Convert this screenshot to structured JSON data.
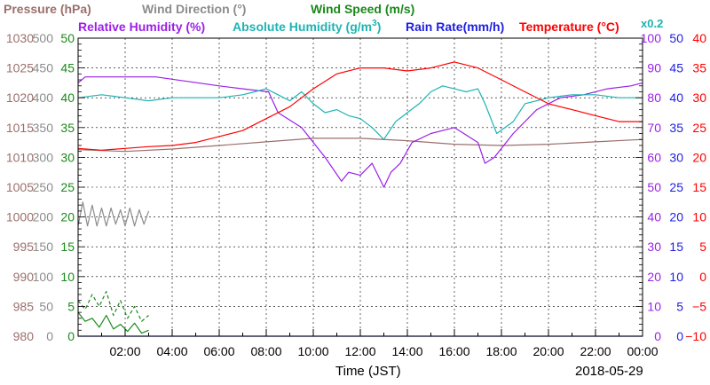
{
  "chart_data": {
    "type": "line",
    "date": "2018-05-29",
    "xlabel": "Time (JST)",
    "x_ticks": [
      "02:00",
      "04:00",
      "06:00",
      "08:00",
      "10:00",
      "12:00",
      "14:00",
      "16:00",
      "18:00",
      "20:00",
      "22:00",
      "00:00"
    ],
    "xlim_hours": [
      0,
      24
    ],
    "grid": true,
    "legend": {
      "row1": [
        {
          "name": "Pressure (hPa)",
          "color": "#9b6f6b"
        },
        {
          "name": "Wind Direction (°)",
          "color": "#8c8c8c"
        },
        {
          "name": "Wind Speed (m/s)",
          "color": "#1a8a1a"
        }
      ],
      "row2": [
        {
          "name": "Relative Humidity (%)",
          "color": "#9b1fe8"
        },
        {
          "name": "Absolute Humidity (g/m",
          "sup": "3",
          "tail": ")",
          "color": "#1fb3b3"
        },
        {
          "name": "Rain Rate(mm/h)",
          "color": "#1f1fe0"
        },
        {
          "name": "Temperature (°C)",
          "color": "#ff0000"
        }
      ],
      "scale_note": {
        "text": "x0.2",
        "color": "#1fb3b3"
      }
    },
    "axes": {
      "pressure": {
        "color": "#9b6f6b",
        "range": [
          980,
          1030
        ],
        "ticks": [
          "980",
          "985",
          "990",
          "995",
          "1000",
          "1005",
          "1010",
          "1015",
          "1020",
          "1025",
          "1030"
        ]
      },
      "wind_direction": {
        "color": "#8c8c8c",
        "range": [
          0,
          500
        ],
        "ticks": [
          "0",
          "50",
          "100",
          "150",
          "200",
          "250",
          "300",
          "350",
          "400",
          "450",
          "500"
        ]
      },
      "wind_speed": {
        "color": "#1a8a1a",
        "range": [
          0,
          50
        ],
        "ticks": [
          "0",
          "5",
          "10",
          "15",
          "20",
          "25",
          "30",
          "35",
          "40",
          "45",
          "50"
        ]
      },
      "relative_humidity": {
        "color": "#9b1fe8",
        "range": [
          0,
          100
        ],
        "ticks": [
          "0",
          "10",
          "20",
          "30",
          "40",
          "50",
          "60",
          "70",
          "80",
          "90",
          "100"
        ]
      },
      "rain_rate": {
        "color": "#1f1fe0",
        "range": [
          0,
          50
        ],
        "ticks": [
          "0",
          "5",
          "10",
          "15",
          "20",
          "25",
          "30",
          "35",
          "40",
          "45",
          "50"
        ]
      },
      "temperature": {
        "color": "#ff0000",
        "range": [
          -10,
          40
        ],
        "ticks": [
          "−10",
          "−5",
          "0",
          "5",
          "10",
          "15",
          "20",
          "25",
          "30",
          "35",
          "40"
        ]
      }
    },
    "series": [
      {
        "name": "Pressure (hPa)",
        "axis": "pressure",
        "color": "#9b6f6b",
        "style": "solid",
        "x": [
          0,
          2,
          4,
          6,
          8,
          10,
          12,
          14,
          16,
          18,
          20,
          22,
          24
        ],
        "y": [
          1011.3,
          1011.0,
          1011.4,
          1012.0,
          1012.6,
          1013.2,
          1013.2,
          1012.8,
          1012.2,
          1012.0,
          1012.2,
          1012.6,
          1013.0
        ]
      },
      {
        "name": "Wind Direction (°)",
        "axis": "wind_direction",
        "color": "#8c8c8c",
        "style": "solid",
        "x": [
          0.0,
          0.2,
          0.4,
          0.6,
          0.8,
          1.0,
          1.2,
          1.4,
          1.6,
          1.8,
          2.0,
          2.2,
          2.4,
          2.6,
          2.8,
          3.0
        ],
        "y": [
          185,
          225,
          185,
          220,
          185,
          215,
          185,
          215,
          188,
          212,
          185,
          215,
          185,
          212,
          188,
          210
        ]
      },
      {
        "name": "Wind Speed (m/s)",
        "axis": "wind_speed",
        "color": "#1a8a1a",
        "style": "solid",
        "x": [
          0.0,
          0.3,
          0.6,
          0.9,
          1.2,
          1.5,
          1.8,
          2.1,
          2.4,
          2.7,
          3.0
        ],
        "y": [
          4,
          2.5,
          3,
          1.5,
          3.5,
          1.2,
          2,
          0.8,
          2.2,
          0.5,
          1
        ]
      },
      {
        "name": "Wind Speed gust (m/s)",
        "axis": "wind_speed",
        "color": "#1a8a1a",
        "style": "dashed",
        "x": [
          0.0,
          0.3,
          0.6,
          0.9,
          1.2,
          1.5,
          1.8,
          2.1,
          2.4,
          2.7,
          3.0
        ],
        "y": [
          6,
          4.5,
          7,
          5,
          7.5,
          3.5,
          6,
          3,
          5,
          2.5,
          3.5
        ]
      },
      {
        "name": "Relative Humidity (%)",
        "axis": "relative_humidity",
        "color": "#9b1fe8",
        "style": "solid",
        "x": [
          0,
          0.3,
          1.3,
          3.3,
          6,
          7,
          8.1,
          8.5,
          9.5,
          10.5,
          11.2,
          11.5,
          12,
          12.5,
          13,
          13.3,
          13.7,
          14.2,
          15,
          16,
          17,
          17.3,
          17.7,
          18.5,
          19.5,
          20.5,
          21.5,
          22.5,
          23.5,
          24
        ],
        "y": [
          85,
          87,
          87,
          87,
          84,
          83,
          82,
          75,
          70,
          60,
          52,
          55,
          54,
          58,
          50,
          55,
          58,
          65,
          68,
          70,
          65,
          58,
          60,
          68,
          76,
          80,
          81,
          83,
          84,
          85
        ]
      },
      {
        "name": "Absolute Humidity (g/m3)",
        "axis": "relative_humidity",
        "color": "#1fb3b3",
        "style": "solid",
        "x": [
          0,
          1,
          2,
          3,
          4,
          5,
          6,
          7,
          7.5,
          8,
          8.5,
          9,
          9.5,
          10,
          10.5,
          11,
          11.5,
          12,
          12.5,
          13,
          13.5,
          14,
          14.5,
          15,
          15.5,
          16,
          16.5,
          17,
          17.3,
          17.8,
          18.5,
          19,
          20,
          21,
          22,
          23,
          24
        ],
        "y": [
          80,
          81,
          80,
          79,
          80,
          80,
          80,
          81,
          82,
          83,
          81,
          79,
          82,
          78,
          75,
          76,
          74,
          73,
          70,
          66,
          72,
          75,
          78,
          82,
          84,
          83,
          82,
          83,
          78,
          68,
          72,
          78,
          80,
          81,
          81,
          80,
          80
        ]
      },
      {
        "name": "Rain Rate(mm/h)",
        "axis": "rain_rate",
        "color": "#1f1fe0",
        "style": "solid",
        "x": [
          0,
          24
        ],
        "y": [
          0,
          0
        ]
      },
      {
        "name": "Temperature (°C)",
        "axis": "temperature",
        "color": "#ff0000",
        "style": "solid",
        "x": [
          0,
          1,
          2,
          3,
          4,
          5,
          6,
          7,
          8,
          9,
          10,
          11,
          12,
          13,
          14,
          15,
          16,
          17,
          18,
          19,
          20,
          21,
          22,
          23,
          24
        ],
        "y": [
          21.5,
          21.2,
          21.5,
          21.8,
          22,
          22.5,
          23.5,
          24.5,
          26.5,
          28.5,
          31.5,
          34,
          35,
          35,
          34.5,
          35,
          36,
          35,
          33,
          31,
          29,
          28,
          27,
          26,
          26
        ]
      }
    ]
  }
}
